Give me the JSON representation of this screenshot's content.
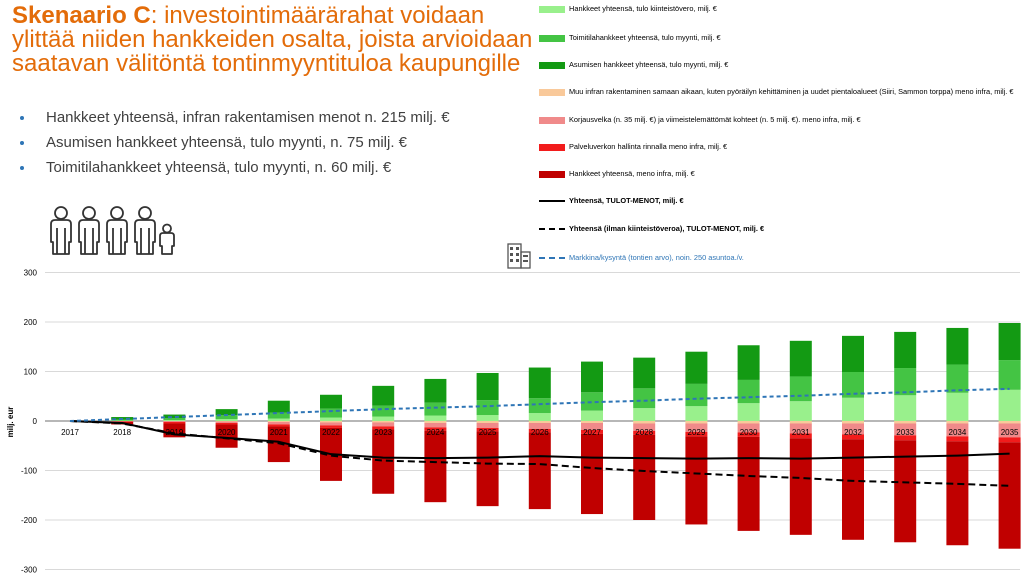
{
  "slide": {
    "title_bold": "Skenaario C",
    "title_rest": ": investointimäärärahat voidaan ylittää niiden hankkeiden osalta, joista arvioidaan saatavan välitöntä tontinmyyntituloa kaupungille",
    "bullets": [
      "Hankkeet yhteensä, infran rakentamisen menot n. 215 milj. €",
      "Asumisen hankkeet yhteensä, tulo myynti, n. 75 milj. €",
      "Toimitilahankkeet yhteensä, tulo myynti, n. 60 milj. €"
    ],
    "icons": {
      "people": "people-icon",
      "building": "building-icon"
    }
  },
  "colors": {
    "title": "#e36c09",
    "bullet": "#2e75b6",
    "kiinteistovero": "#99f08c",
    "toimitila": "#44c444",
    "asuminen": "#139a13",
    "muu_infra": "#f9c99a",
    "korjausvelka": "#f08a8a",
    "palveluverkko": "#f21c1c",
    "hankkeet_infra": "#c00000",
    "total_line": "#000000",
    "market_line": "#2e75b6"
  },
  "chart_data": {
    "type": "bar",
    "stacked": true,
    "title": "",
    "xlabel": "",
    "ylabel": "milj. eur",
    "ylim": [
      -300,
      300
    ],
    "yticks": [
      300,
      200,
      100,
      0,
      -100,
      -200,
      -300
    ],
    "grid": true,
    "legend_position": "top-right",
    "categories": [
      "2017",
      "2018",
      "2019",
      "2020",
      "2021",
      "2022",
      "2023",
      "2024",
      "2025",
      "2026",
      "2027",
      "2028",
      "2029",
      "2030",
      "2031",
      "2032",
      "2033",
      "2034",
      "2035"
    ],
    "series": [
      {
        "name": "Hankkeet yhteensä, tulo kiinteistövero, milj. €",
        "key": "kiinteistovero",
        "kind": "bar",
        "stack": "pos",
        "values": [
          0,
          1,
          2,
          4,
          5,
          7,
          9,
          11,
          12,
          16,
          21,
          26,
          30,
          36,
          40,
          47,
          52,
          57,
          63
        ]
      },
      {
        "name": "Toimitilahankkeet yhteensä, tulo myynti, milj. €",
        "key": "toimitila",
        "kind": "bar",
        "stack": "pos",
        "values": [
          0,
          2,
          4,
          8,
          12,
          18,
          22,
          26,
          30,
          30,
          37,
          40,
          45,
          47,
          50,
          52,
          55,
          57,
          60
        ]
      },
      {
        "name": "Asumisen hankkeet yhteensä, tulo myynti, milj. €",
        "key": "asuminen",
        "kind": "bar",
        "stack": "pos",
        "values": [
          0,
          5,
          7,
          12,
          24,
          28,
          40,
          48,
          55,
          62,
          62,
          62,
          65,
          70,
          72,
          73,
          73,
          74,
          75
        ]
      },
      {
        "name": "Muu infran rakentaminen samaan aikaan, kuten pyöräilyn kehittäminen ja uudet pientaloalueet (Siiri, Sammon torppa) meno infra, milj. €",
        "key": "muu_infra",
        "kind": "bar",
        "stack": "neg",
        "values": [
          0,
          0,
          0,
          1,
          2,
          3,
          3,
          4,
          4,
          4,
          4,
          5,
          5,
          5,
          5,
          5,
          5,
          5,
          5
        ]
      },
      {
        "name": "Korjausvelka (n. 35 milj. €) ja viimeistelemättömät kohteet (n. 5 milj. €). meno infra, milj. €",
        "key": "korjausvelka",
        "kind": "bar",
        "stack": "neg",
        "values": [
          0,
          1,
          2,
          3,
          5,
          6,
          8,
          9,
          10,
          12,
          14,
          15,
          17,
          18,
          20,
          22,
          24,
          26,
          28
        ]
      },
      {
        "name": "Palveluverkon hallinta rinnalla meno infra, milj. €",
        "key": "palveluverkko",
        "kind": "bar",
        "stack": "neg",
        "values": [
          0,
          1,
          3,
          3,
          4,
          5,
          6,
          7,
          7,
          7,
          8,
          8,
          9,
          9,
          10,
          10,
          10,
          10,
          10
        ]
      },
      {
        "name": "Hankkeet yhteensä, meno infra, milj. €",
        "key": "hankkeet_infra",
        "kind": "bar",
        "stack": "neg",
        "values": [
          0,
          5,
          28,
          47,
          72,
          107,
          130,
          144,
          151,
          155,
          162,
          172,
          178,
          190,
          195,
          203,
          206,
          210,
          215
        ]
      },
      {
        "name": "Yhteensä, TULOT-MENOT, milj. €",
        "key": "total_line",
        "kind": "line",
        "dash": "solid",
        "values": [
          0,
          -4,
          -27,
          -34,
          -42,
          -67,
          -74,
          -75,
          -74,
          -71,
          -74,
          -75,
          -76,
          -75,
          -76,
          -74,
          -72,
          -70,
          -66
        ]
      },
      {
        "name": "Yhteensä (ilman kiinteistöveroa), TULOT-MENOT, milj. €",
        "key": "total_line",
        "kind": "line",
        "dash": "dashed",
        "values": [
          0,
          -5,
          -25,
          -35,
          -45,
          -70,
          -80,
          -83,
          -86,
          -87,
          -95,
          -101,
          -106,
          -111,
          -115,
          -121,
          -124,
          -127,
          -131
        ]
      },
      {
        "name": "Markkina/kysyntä (tontien arvo), noin. 250 asuntoa./v.",
        "key": "market_line",
        "kind": "line",
        "dash": "short-dash",
        "values": [
          0,
          4,
          8,
          12,
          16,
          20,
          24,
          27,
          30,
          34,
          38,
          41,
          45,
          48,
          51,
          55,
          58,
          62,
          65
        ]
      }
    ]
  }
}
